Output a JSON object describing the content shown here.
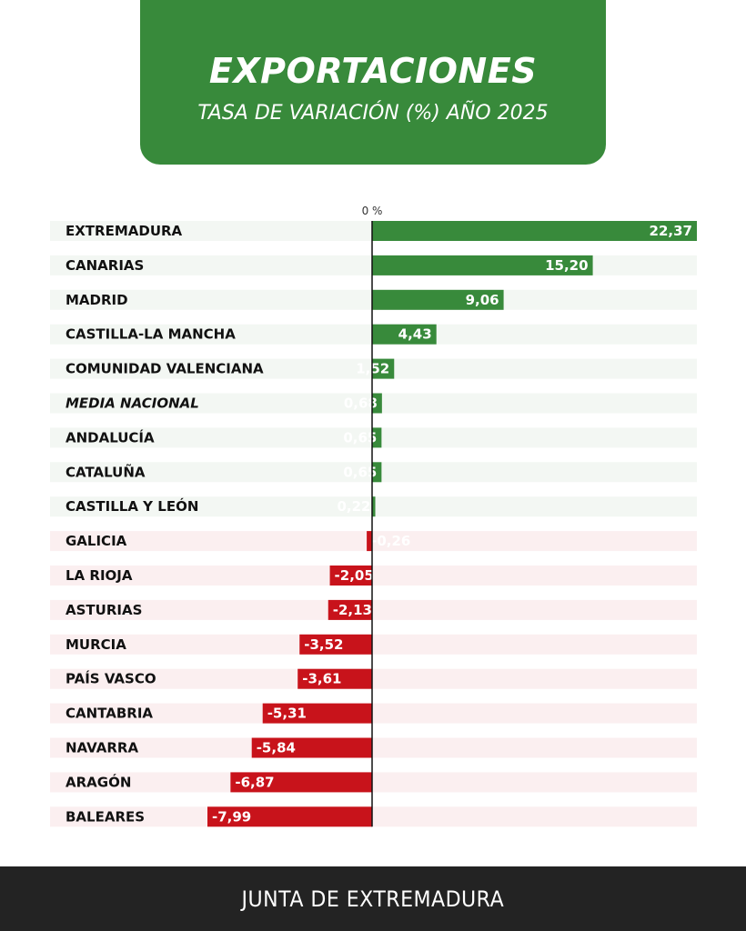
{
  "header": {
    "title": "EXPORTACIONES",
    "subtitle": "TASA DE VARIACIÓN (%) AÑO 2025"
  },
  "chart_data": {
    "type": "bar",
    "orientation": "horizontal",
    "zero_label": "0 %",
    "categories": [
      "EXTREMADURA",
      "CANARIAS",
      "MADRID",
      "CASTILLA-LA MANCHA",
      "COMUNIDAD VALENCIANA",
      "MEDIA NACIONAL",
      "ANDALUCÍA",
      "CATALUÑA",
      "CASTILLA Y LEÓN",
      "GALICIA",
      "LA RIOJA",
      "ASTURIAS",
      "MURCIA",
      "PAÍS VASCO",
      "CANTABRIA",
      "NAVARRA",
      "ARAGÓN",
      "BALEARES"
    ],
    "values": [
      22.37,
      15.2,
      9.06,
      4.43,
      1.52,
      0.68,
      0.65,
      0.65,
      0.22,
      -0.26,
      -2.05,
      -2.13,
      -3.52,
      -3.61,
      -5.31,
      -5.84,
      -6.87,
      -7.99
    ],
    "value_labels": [
      "22,37",
      "15,20",
      "9,06",
      "4,43",
      "1,52",
      "0,68",
      "0,65",
      "0,65",
      "0,22",
      "-0,26",
      "-2,05",
      "-2,13",
      "-3,52",
      "-3,61",
      "-5,31",
      "-5,84",
      "-6,87",
      "-7,99"
    ],
    "highlight_category": "MEDIA NACIONAL",
    "positive_color": "#388a3b",
    "negative_color": "#c8131b",
    "positive_row_bg": "#f3f7f3",
    "negative_row_bg": "#fbeff0"
  },
  "footer": {
    "text": "JUNTA DE EXTREMADURA"
  }
}
